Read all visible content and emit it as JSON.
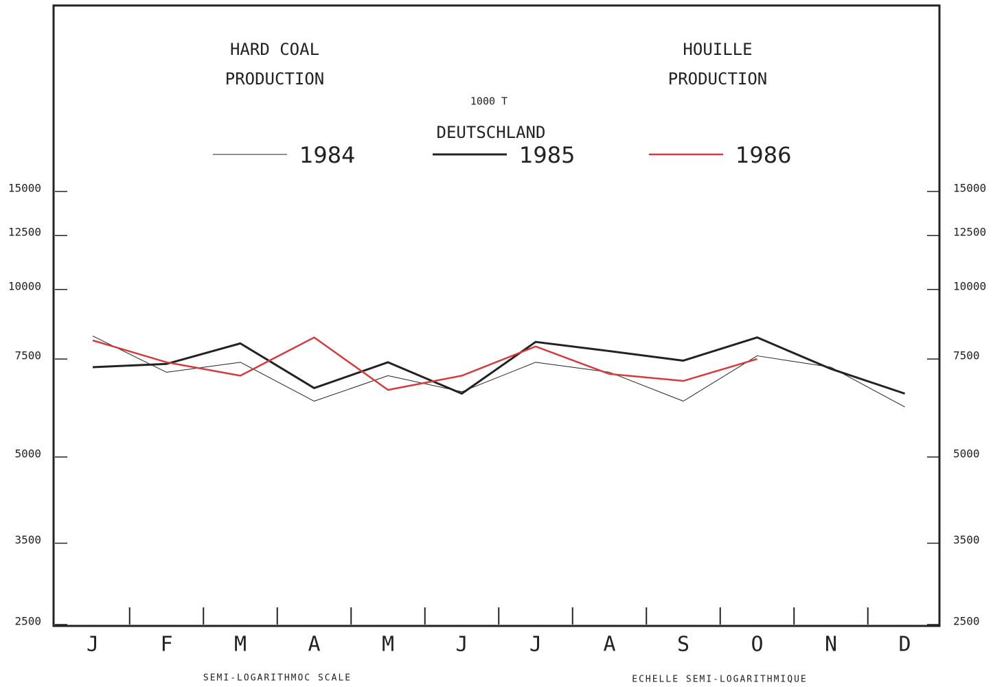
{
  "chart_data": {
    "type": "line",
    "title_en": [
      "HARD COAL",
      "PRODUCTION"
    ],
    "title_fr": [
      "HOUILLE",
      "PRODUCTION"
    ],
    "unit": "1000 T",
    "subtitle": "DEUTSCHLAND",
    "notes": [
      "SEMI-LOGARITHMOC SCALE",
      "ECHELLE SEMI-LOGARITHMIQUE"
    ],
    "categories": [
      "J",
      "F",
      "M",
      "A",
      "M",
      "J",
      "J",
      "A",
      "S",
      "O",
      "N",
      "D"
    ],
    "series": [
      {
        "name": "1984",
        "color": "#222222",
        "values": [
          8250,
          7100,
          7400,
          6300,
          7000,
          6550,
          7400,
          7100,
          6300,
          7600,
          7250,
          6150
        ]
      },
      {
        "name": "1985",
        "color": "#222222",
        "values": [
          7250,
          7350,
          8000,
          6650,
          7400,
          6500,
          8050,
          7750,
          7450,
          8200,
          7200,
          6500
        ]
      },
      {
        "name": "1986",
        "color": "#d23c3c",
        "values": [
          8100,
          7400,
          7000,
          8200,
          6600,
          7000,
          7900,
          7050,
          6850,
          7500,
          null,
          null
        ]
      }
    ],
    "ylim": [
      2500,
      15000
    ],
    "yticks": [
      2500,
      3500,
      5000,
      7500,
      10000,
      12500,
      15000
    ],
    "log_scale": true,
    "grid": false
  }
}
